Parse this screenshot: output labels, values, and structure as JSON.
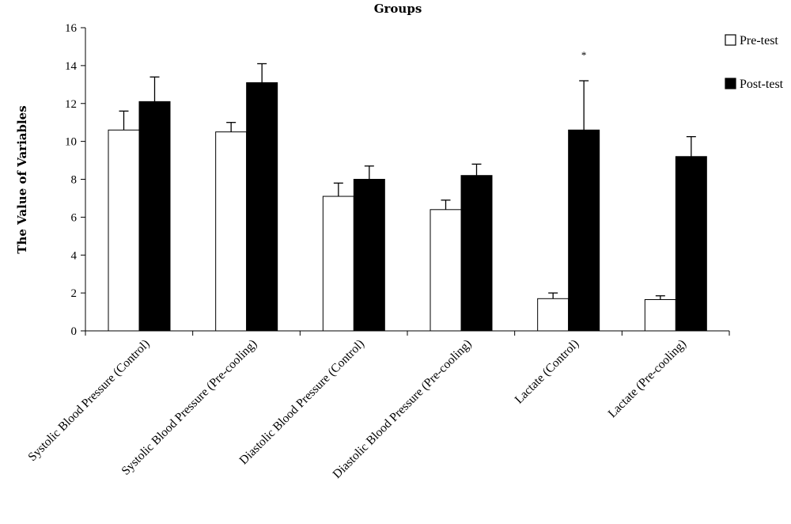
{
  "chart_data": {
    "type": "bar",
    "title": "Groups",
    "xlabel": "",
    "ylabel": "The Value of Variables",
    "ylim": [
      0,
      16
    ],
    "yticks": [
      0,
      2,
      4,
      6,
      8,
      10,
      12,
      14,
      16
    ],
    "grid": false,
    "legend_position": "top-right",
    "categories": [
      "Systolic Blood Pressure (Control)",
      "Systolic Blood Pressure (Pre-cooling)",
      "Diastolic Blood Pressure (Control)",
      "Diastolic Blood Pressure (Pre-cooling)",
      "Lactate (Control)",
      "Lactate (Pre-cooling)"
    ],
    "series": [
      {
        "name": "Pre-test",
        "color": "#ffffff",
        "values": [
          10.6,
          10.5,
          7.1,
          6.4,
          1.7,
          1.65
        ],
        "errors": [
          1.0,
          0.5,
          0.7,
          0.5,
          0.3,
          0.2
        ]
      },
      {
        "name": "Post-test",
        "color": "#000000",
        "values": [
          12.1,
          13.1,
          8.0,
          8.2,
          10.6,
          9.2
        ],
        "errors": [
          1.3,
          1.0,
          0.7,
          0.6,
          2.6,
          1.05
        ]
      }
    ],
    "annotations": [
      {
        "text": "*",
        "category_index": 4,
        "series_index": 1,
        "y": 14.5
      }
    ]
  }
}
